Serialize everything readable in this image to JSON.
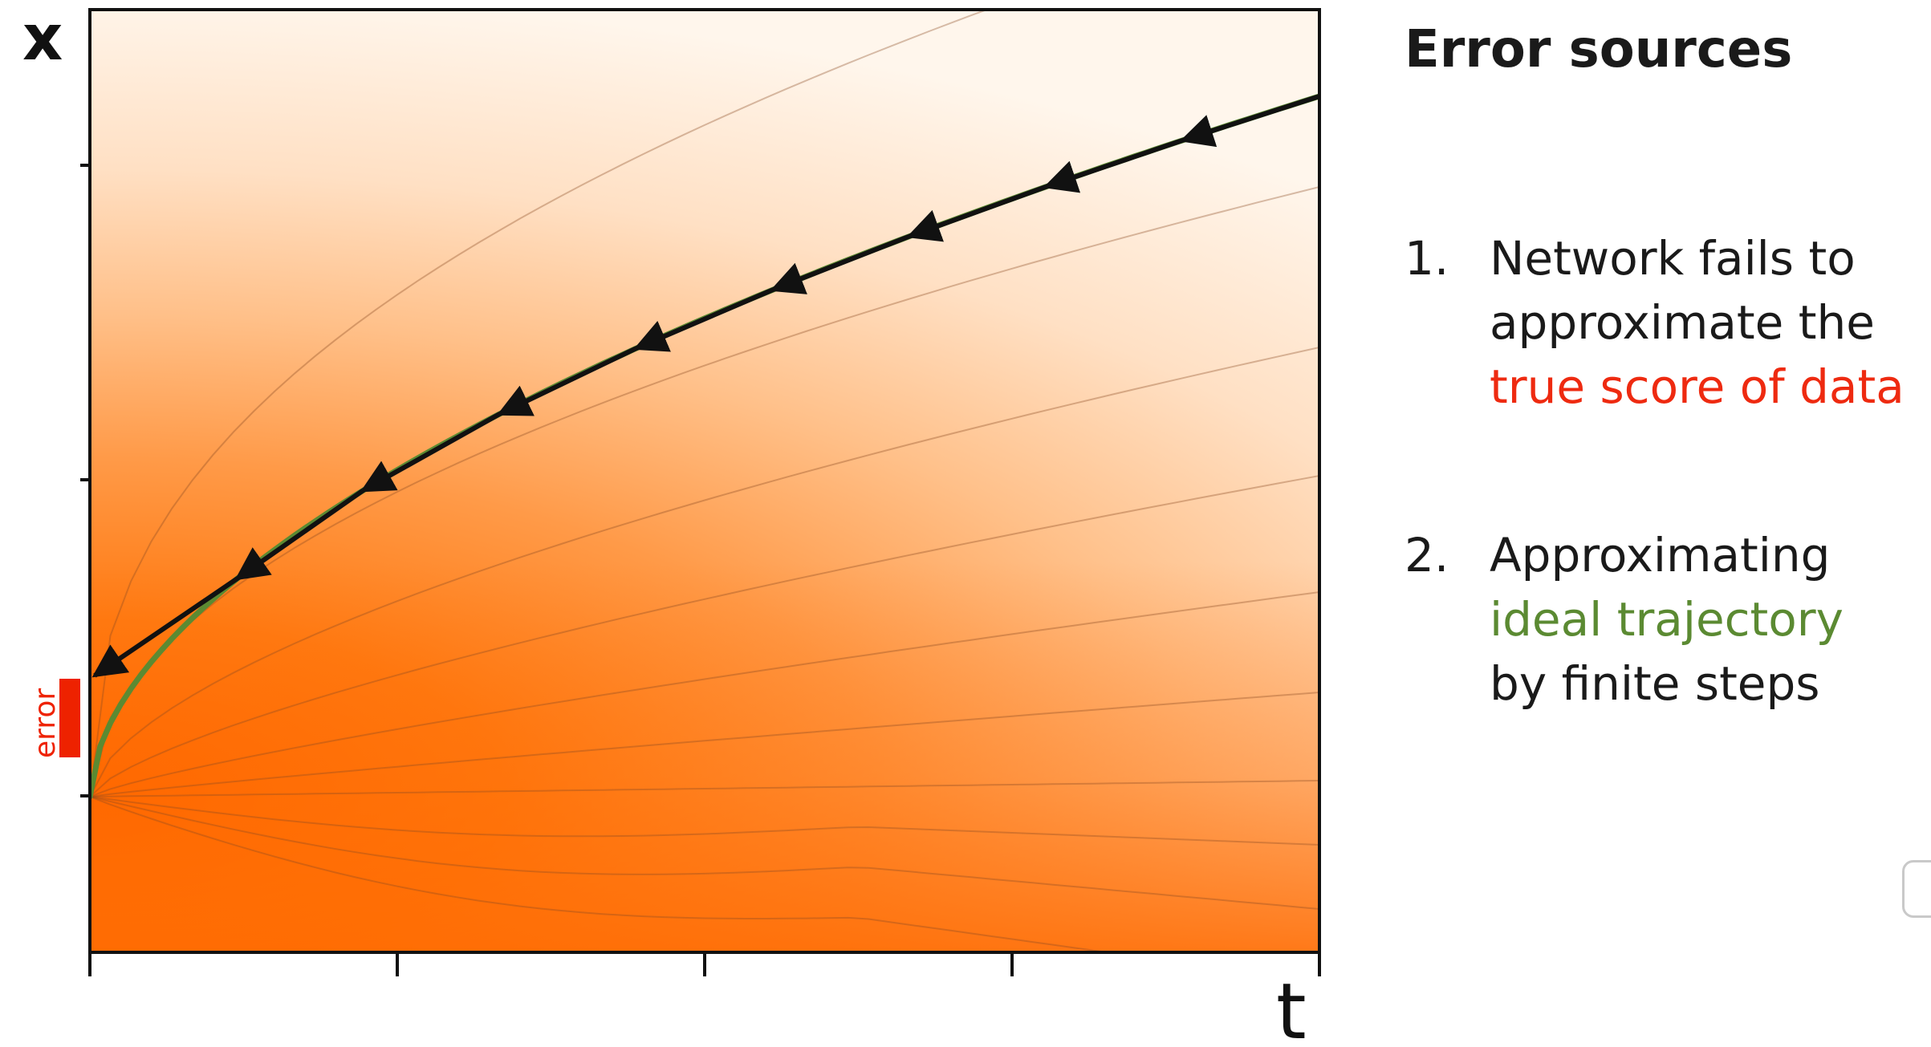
{
  "diagram": {
    "x_axis_label": "t",
    "y_axis_label": "x",
    "error_label": "error",
    "colors": {
      "density_high": "#ff6a00",
      "density_low": "#fff7ee",
      "ideal_trajectory": "#5b8a32",
      "step_arrows": "#111111",
      "error_bar": "#ee2200"
    },
    "step_count": 9
  },
  "sidebar": {
    "heading": "Error sources",
    "items": [
      {
        "number": "1.",
        "lines": [
          "Network fails to",
          "approximate the"
        ],
        "highlight": "true score of data"
      },
      {
        "number": "2.",
        "line_before": "Approximating",
        "highlight": "ideal trajectory",
        "line_after": "by finite steps"
      }
    ]
  }
}
